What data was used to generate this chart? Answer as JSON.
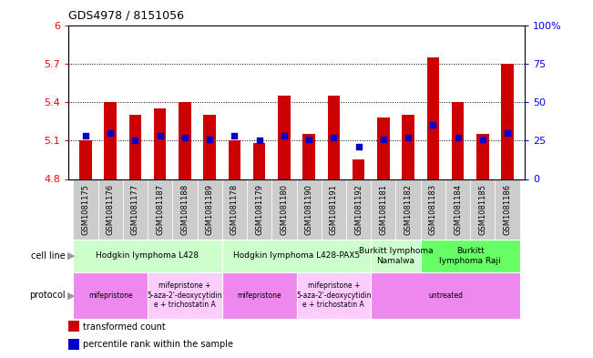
{
  "title": "GDS4978 / 8151056",
  "samples": [
    "GSM1081175",
    "GSM1081176",
    "GSM1081177",
    "GSM1081187",
    "GSM1081188",
    "GSM1081189",
    "GSM1081178",
    "GSM1081179",
    "GSM1081180",
    "GSM1081190",
    "GSM1081191",
    "GSM1081192",
    "GSM1081181",
    "GSM1081182",
    "GSM1081183",
    "GSM1081184",
    "GSM1081185",
    "GSM1081186"
  ],
  "transformed_count": [
    5.1,
    5.4,
    5.3,
    5.35,
    5.4,
    5.3,
    5.1,
    5.08,
    5.45,
    5.15,
    5.45,
    4.95,
    5.28,
    5.3,
    5.75,
    5.4,
    5.15,
    5.7
  ],
  "percentile_rank": [
    28,
    30,
    25,
    28,
    27,
    26,
    28,
    25,
    28,
    26,
    27,
    21,
    26,
    27,
    35,
    27,
    26,
    30
  ],
  "ylim_left": [
    4.8,
    6.0
  ],
  "ylim_right": [
    0,
    100
  ],
  "yticks_left": [
    4.8,
    5.1,
    5.4,
    5.7,
    6.0
  ],
  "yticks_right": [
    0,
    25,
    50,
    75,
    100
  ],
  "ytick_labels_left": [
    "4.8",
    "5.1",
    "5.4",
    "5.7",
    "6"
  ],
  "ytick_labels_right": [
    "0",
    "25",
    "50",
    "75",
    "100%"
  ],
  "hlines": [
    5.1,
    5.4,
    5.7
  ],
  "bar_color": "#cc0000",
  "dot_color": "#0000cc",
  "bar_bottom": 4.8,
  "cell_line_groups": [
    {
      "label": "Hodgkin lymphoma L428",
      "start": 0,
      "end": 5,
      "color": "#ccffcc"
    },
    {
      "label": "Hodgkin lymphoma L428-PAX5",
      "start": 6,
      "end": 11,
      "color": "#ccffcc"
    },
    {
      "label": "Burkitt lymphoma\nNamalwa",
      "start": 12,
      "end": 13,
      "color": "#ccffcc"
    },
    {
      "label": "Burkitt\nlymphoma Raji",
      "start": 14,
      "end": 17,
      "color": "#66ff66"
    }
  ],
  "protocol_groups": [
    {
      "label": "mifepristone",
      "start": 0,
      "end": 2,
      "color": "#ee88ee"
    },
    {
      "label": "mifepristone +\n5-aza-2'-deoxycytidin\ne + trichostatin A",
      "start": 3,
      "end": 5,
      "color": "#ffccff"
    },
    {
      "label": "mifepristone",
      "start": 6,
      "end": 8,
      "color": "#ee88ee"
    },
    {
      "label": "mifepristone +\n5-aza-2'-deoxycytidin\ne + trichostatin A",
      "start": 9,
      "end": 11,
      "color": "#ffccff"
    },
    {
      "label": "untreated",
      "start": 12,
      "end": 17,
      "color": "#ee88ee"
    }
  ],
  "legend_items": [
    {
      "label": "transformed count",
      "color": "#cc0000"
    },
    {
      "label": "percentile rank within the sample",
      "color": "#0000cc"
    }
  ],
  "bg_color": "#ffffff",
  "tick_bg_color": "#cccccc",
  "arrow_color": "#999999"
}
